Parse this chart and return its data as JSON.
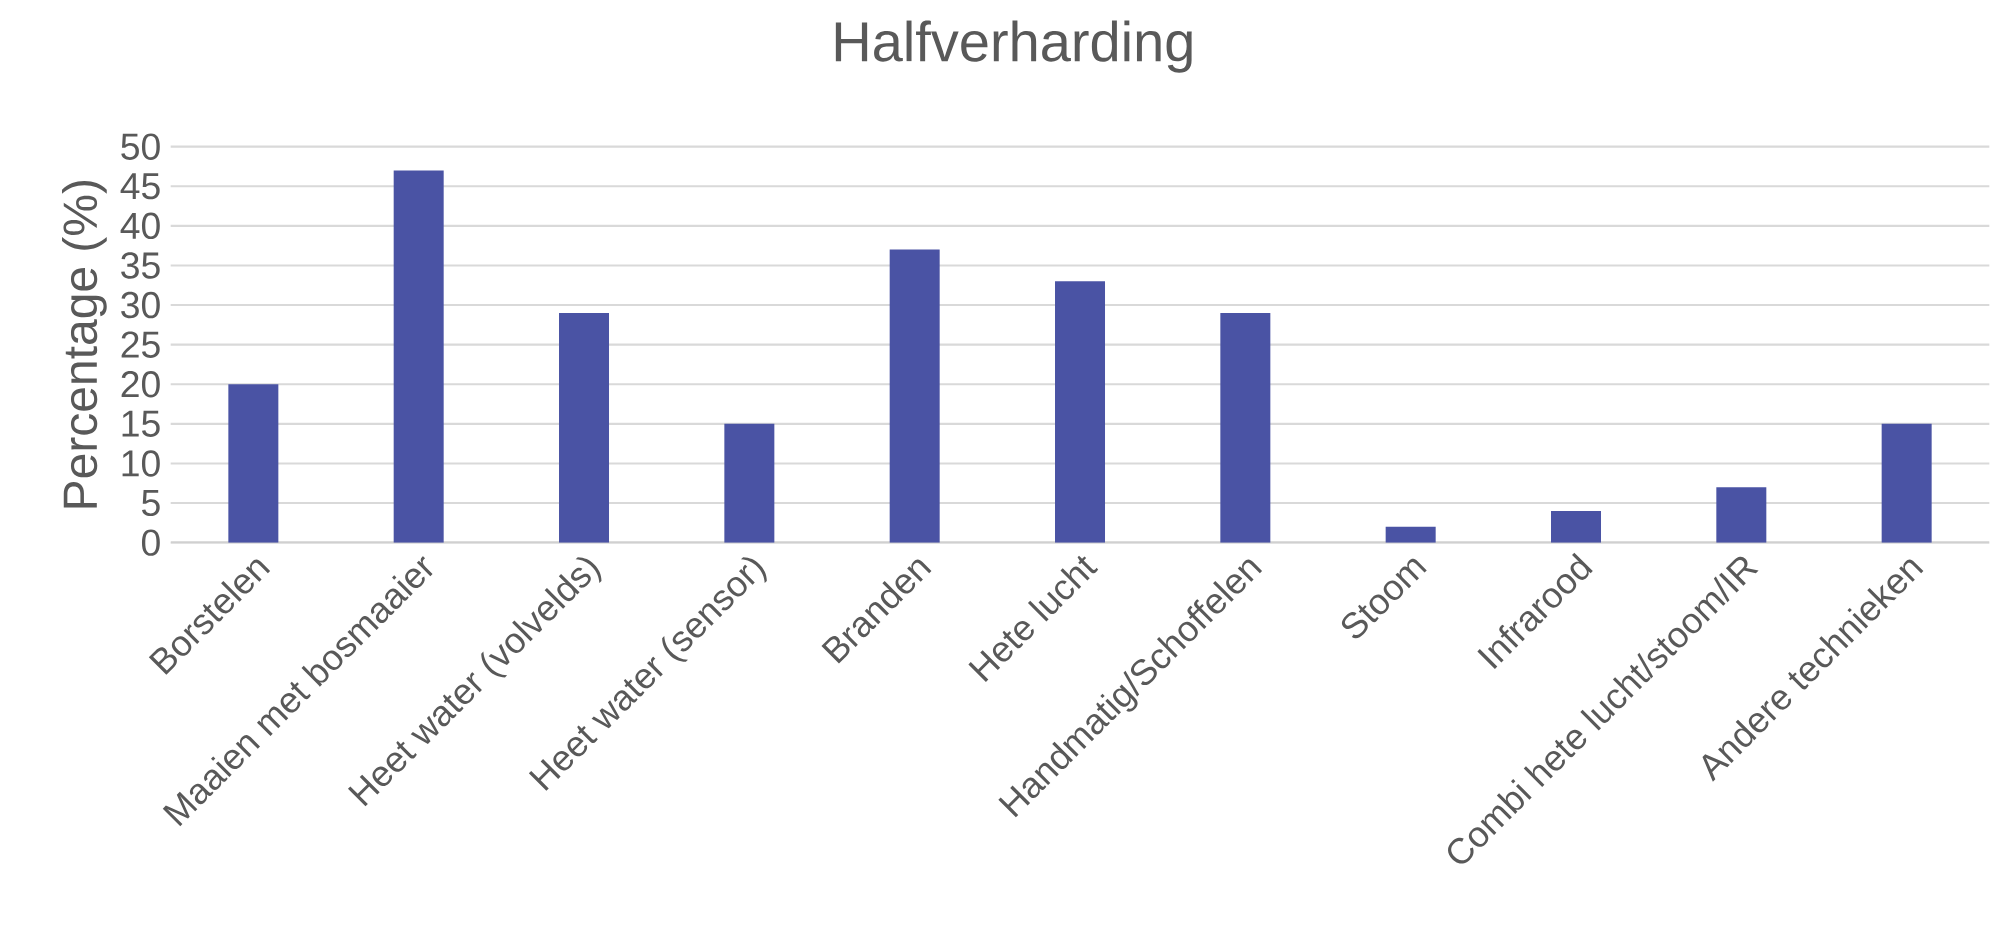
{
  "chart_data": {
    "type": "bar",
    "title": "Halfverharding",
    "ylabel": "Percentage (%)",
    "categories": [
      "Borstelen",
      "Maaien met bosmaaier",
      "Heet water (volvelds)",
      "Heet water (sensor)",
      "Branden",
      "Hete lucht",
      "Handmatig/Schoffelen",
      "Stoom",
      "Infrarood",
      "Combi hete lucht/stoom/IR",
      "Andere technieken"
    ],
    "values": [
      20,
      47,
      29,
      15,
      37,
      33,
      29,
      2,
      4,
      7,
      15
    ],
    "color": "#4a53a4",
    "ylim": [
      0,
      50
    ],
    "yticks": [
      0,
      5,
      10,
      15,
      20,
      25,
      30,
      35,
      40,
      45,
      50
    ],
    "grid": "y"
  }
}
